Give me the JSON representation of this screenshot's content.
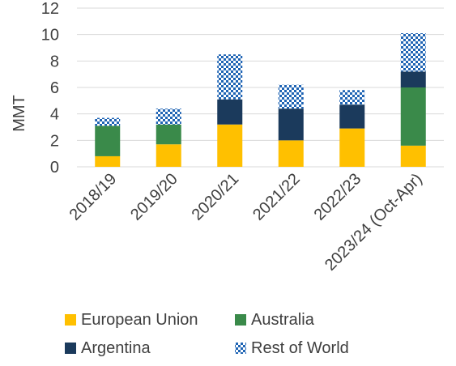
{
  "chart_data": {
    "type": "bar",
    "stacked": true,
    "categories": [
      "2018/19",
      "2019/20",
      "2020/21",
      "2021/22",
      "2022/23",
      "2023/24 (Oct-Apr)"
    ],
    "series": [
      {
        "name": "European Union",
        "color": "#FFC000",
        "pattern": "solid",
        "values": [
          0.8,
          1.7,
          3.2,
          2.0,
          2.9,
          1.6
        ]
      },
      {
        "name": "Australia",
        "color": "#3A8A4A",
        "pattern": "solid",
        "values": [
          2.3,
          1.5,
          0.0,
          0.0,
          0.0,
          4.4
        ]
      },
      {
        "name": "Argentina",
        "color": "#1B3A5C",
        "pattern": "solid",
        "values": [
          0.0,
          0.0,
          1.9,
          2.4,
          1.8,
          1.2
        ]
      },
      {
        "name": "Rest of World",
        "color": "#1F64B4",
        "pattern": "checkered",
        "values": [
          0.6,
          1.2,
          3.4,
          1.8,
          1.1,
          2.9
        ]
      }
    ],
    "ylabel": "MMT",
    "xlabel": "",
    "ylim": [
      0,
      12
    ],
    "yticks": [
      0,
      2,
      4,
      6,
      8,
      10,
      12
    ],
    "grid": true,
    "legend_position": "bottom"
  }
}
